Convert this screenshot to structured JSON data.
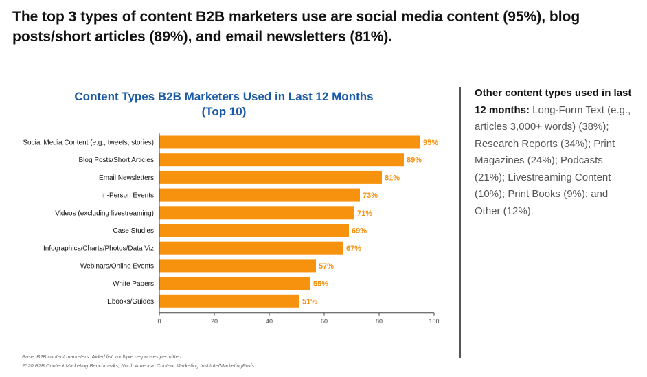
{
  "headline": "The top 3 types of content B2B marketers use are social media content (95%), blog posts/short articles (89%), and email newsletters (81%).",
  "chart_data": {
    "type": "bar",
    "orientation": "horizontal",
    "title_line1": "Content Types B2B Marketers Used in Last 12 Months",
    "title_line2": "(Top 10)",
    "categories": [
      "Social Media Content (e.g., tweets, stories)",
      "Blog Posts/Short Articles",
      "Email Newsletters",
      "In-Person Events",
      "Videos (excluding livestreaming)",
      "Case Studies",
      "Infographics/Charts/Photos/Data Viz",
      "Webinars/Online Events",
      "White Papers",
      "Ebooks/Guides"
    ],
    "values": [
      95,
      89,
      81,
      73,
      71,
      69,
      67,
      57,
      55,
      51
    ],
    "value_labels": [
      "95%",
      "89%",
      "81%",
      "73%",
      "71%",
      "69%",
      "67%",
      "57%",
      "55%",
      "51%"
    ],
    "xlim": [
      0,
      100
    ],
    "xticks": [
      0,
      20,
      40,
      60,
      80,
      100
    ],
    "bar_color": "#f7920e",
    "label_color": "#f7920e",
    "grid": false
  },
  "side_note": {
    "lead": "Other content types used in last 12 months:",
    "body": " Long-Form Text (e.g., articles 3,000+ words) (38%); Research Reports (34%); Print Magazines (24%); Podcasts (21%); Livestreaming Content (10%); Print Books (9%); and Other (12%)."
  },
  "source": {
    "base": "Base: B2B content marketers. Aided list; multiple responses permitted.",
    "citation": "2020 B2B Content Marketing Benchmarks, North America: Content Marketing Institute/MarketingProfs"
  },
  "colors": {
    "title_blue": "#1a5aa6",
    "bar_orange": "#f7920e"
  }
}
